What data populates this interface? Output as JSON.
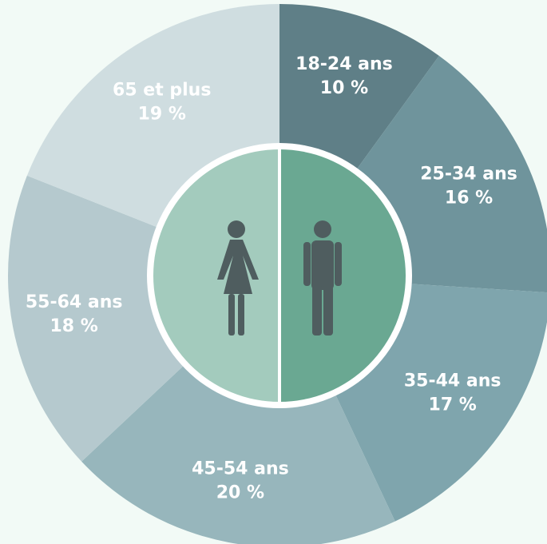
{
  "chart_data": {
    "type": "pie",
    "categories": [
      "18-24 ans",
      "25-34 ans",
      "35-44 ans",
      "45-54 ans",
      "55-64 ans",
      "65 et plus"
    ],
    "values": [
      10,
      16,
      17,
      20,
      18,
      19
    ],
    "value_labels": [
      "10 %",
      "16 %",
      "17 %",
      "20 %",
      "18 %",
      "19 %"
    ],
    "colors": [
      "#5f7f87",
      "#6f949c",
      "#7fa5ad",
      "#97b6bc",
      "#b5c9ce",
      "#cfdde0"
    ]
  }
}
